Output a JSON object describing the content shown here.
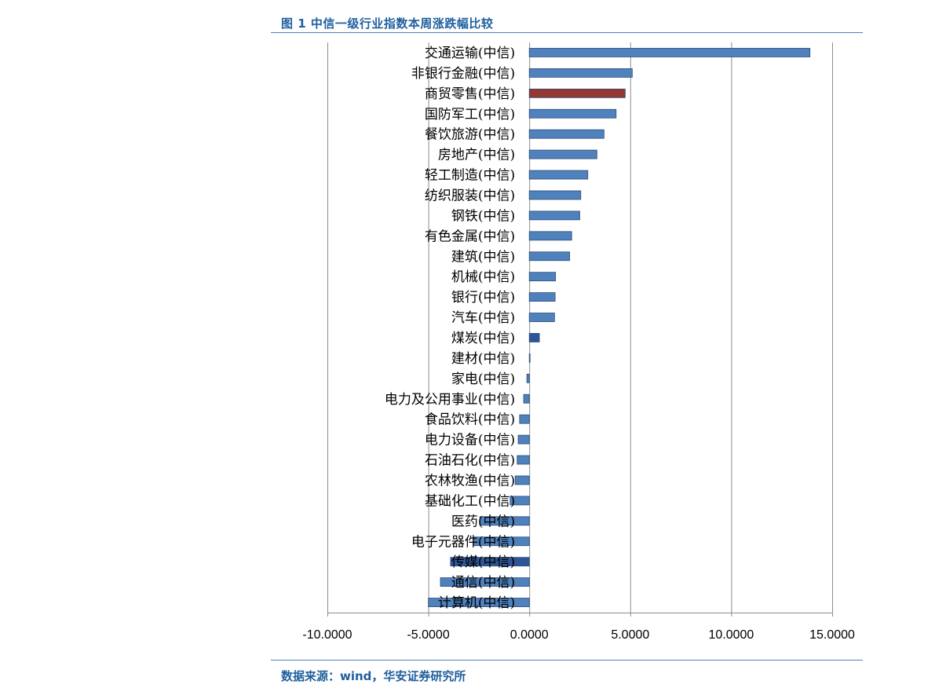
{
  "figure": {
    "title": "图 1 中信一级行业指数本周涨跌幅比较",
    "source": "数据来源：wind，华安证券研究所"
  },
  "colors": {
    "bar": "#4F81BD",
    "highlight": "#953735",
    "dark": "#2F5597",
    "grid": "#8C8C8C",
    "rule": "#4F81BD",
    "title": "#1F5F9F"
  },
  "chart_data": {
    "type": "bar",
    "orientation": "horizontal",
    "title": "",
    "xlabel": "",
    "ylabel": "",
    "xlim": [
      -10,
      15
    ],
    "x_ticks": [
      -10,
      -5,
      0,
      5,
      10,
      15
    ],
    "x_tick_labels": [
      "-10.0000",
      "-5.0000",
      "0.0000",
      "5.0000",
      "10.0000",
      "15.0000"
    ],
    "grid": true,
    "categories": [
      "交通运输(中信)",
      "非银行金融(中信)",
      "商贸零售(中信)",
      "国防军工(中信)",
      "餐饮旅游(中信)",
      "房地产(中信)",
      "轻工制造(中信)",
      "纺织服装(中信)",
      "钢铁(中信)",
      "有色金属(中信)",
      "建筑(中信)",
      "机械(中信)",
      "银行(中信)",
      "汽车(中信)",
      "煤炭(中信)",
      "建材(中信)",
      "家电(中信)",
      "电力及公用事业(中信)",
      "食品饮料(中信)",
      "电力设备(中信)",
      "石油石化(中信)",
      "农林牧渔(中信)",
      "基础化工(中信)",
      "医药(中信)",
      "电子元器件(中信)",
      "传媒(中信)",
      "通信(中信)",
      "计算机(中信)"
    ],
    "values": [
      13.9,
      5.1,
      4.75,
      4.3,
      3.7,
      3.35,
      2.9,
      2.55,
      2.5,
      2.1,
      2.0,
      1.3,
      1.28,
      1.25,
      0.5,
      0.03,
      -0.12,
      -0.28,
      -0.48,
      -0.55,
      -0.6,
      -0.7,
      -0.95,
      -2.45,
      -2.75,
      -3.9,
      -4.4,
      -5.0
    ],
    "highlight_index": 2,
    "dark_indices": [
      14,
      25
    ]
  }
}
